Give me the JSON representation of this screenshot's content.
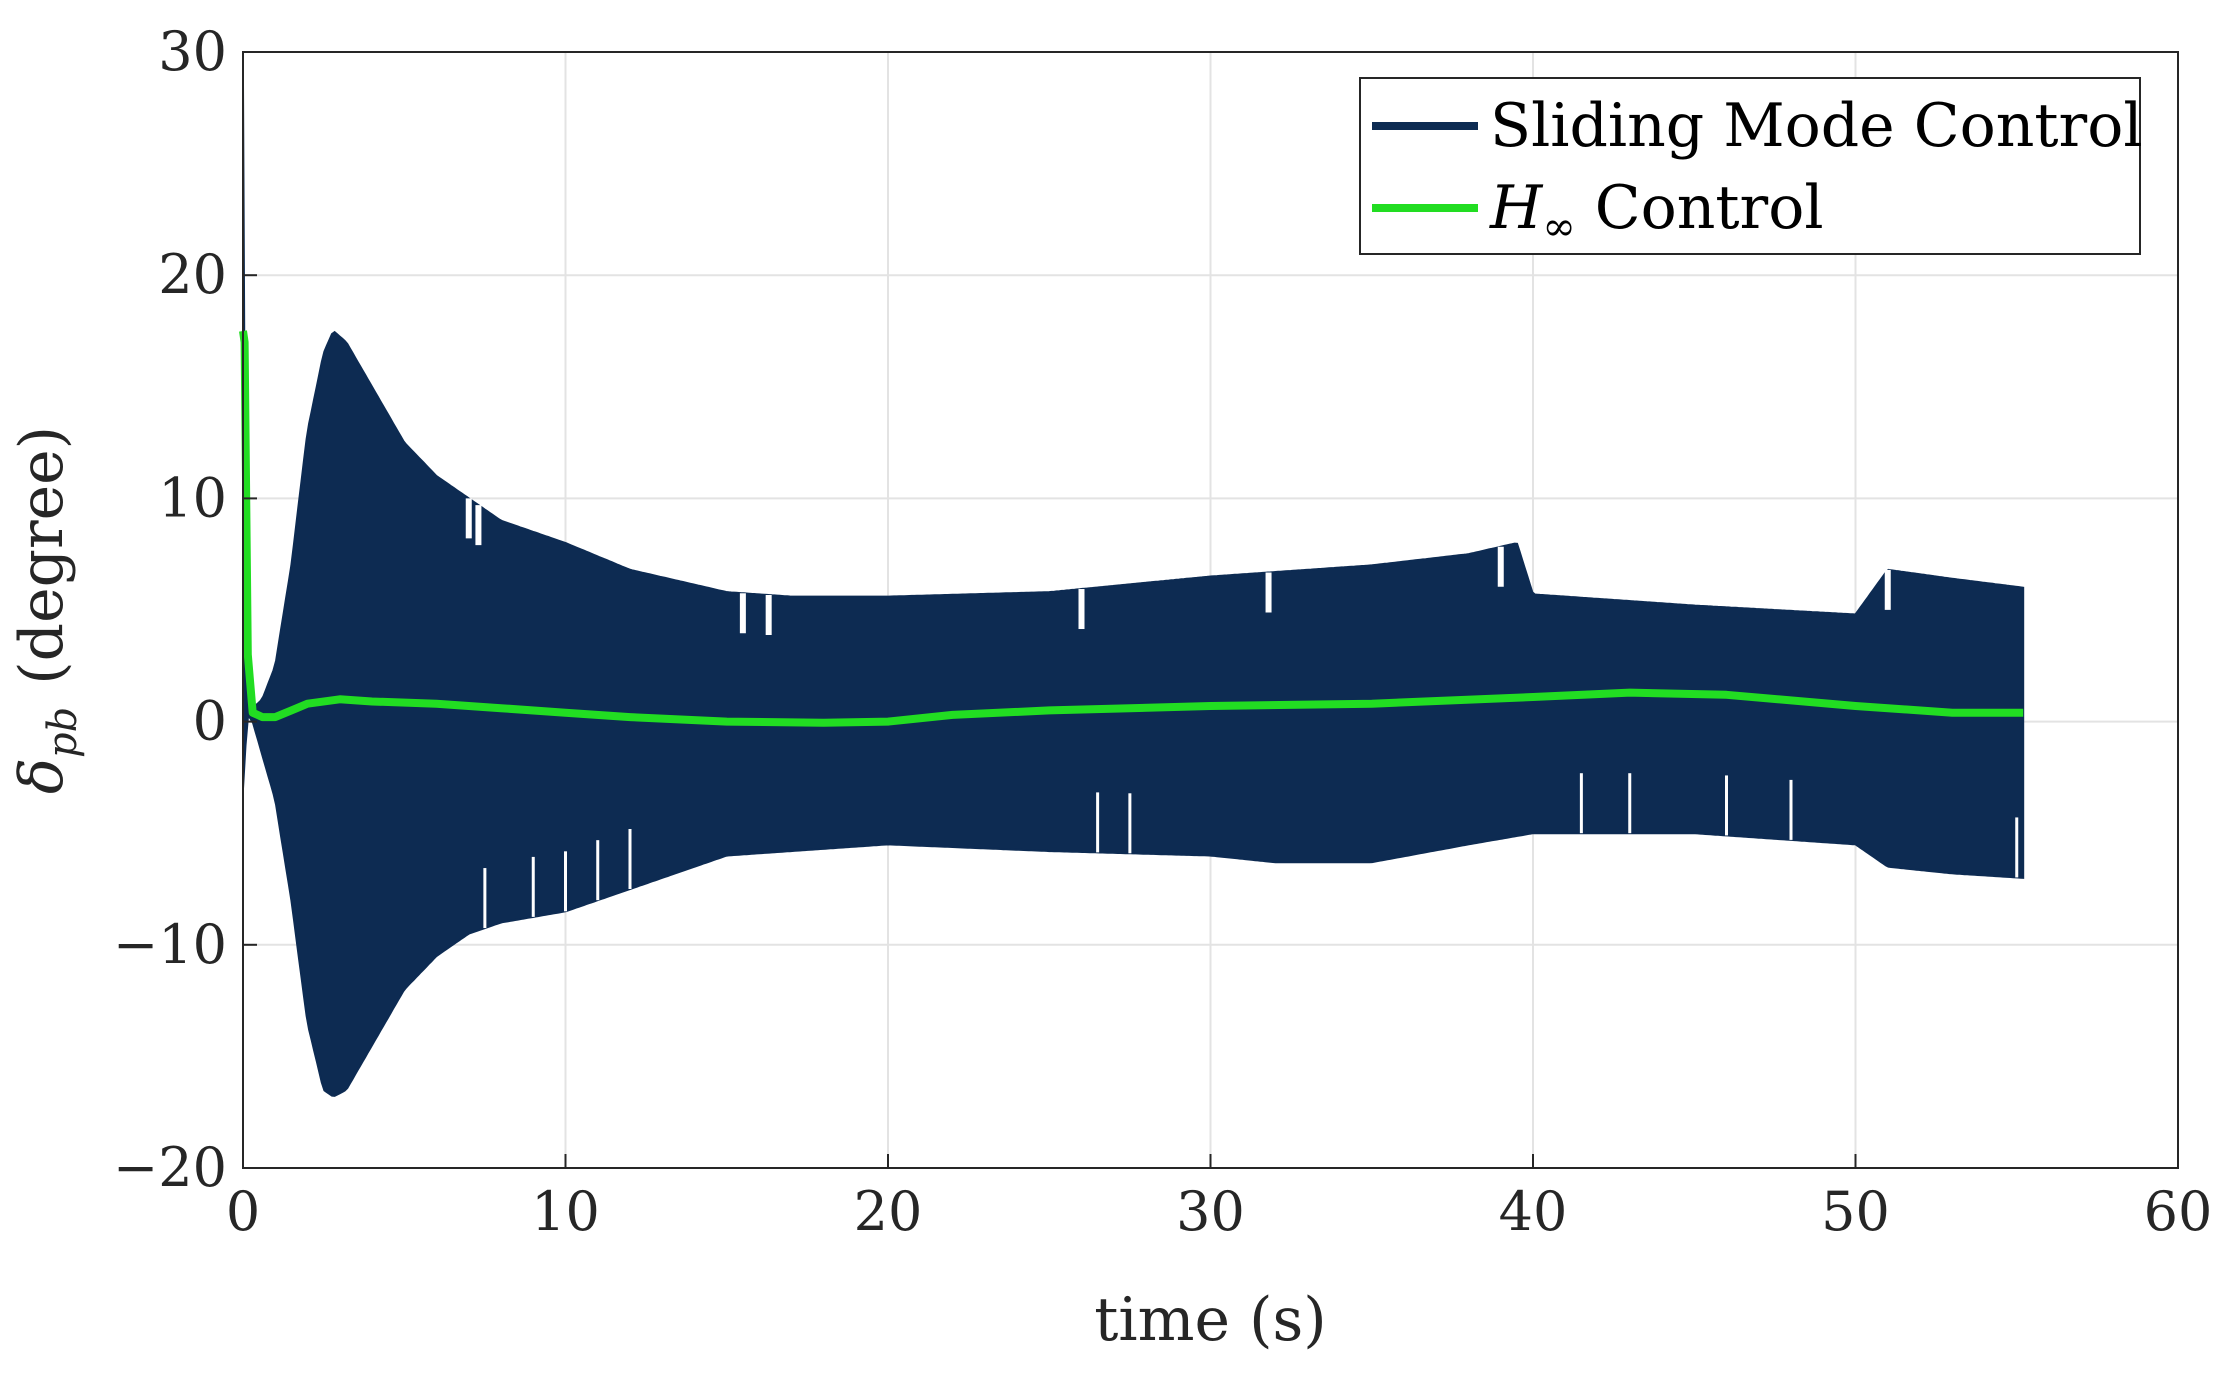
{
  "chart_data": {
    "type": "line",
    "title": "",
    "xlabel": "time (s)",
    "ylabel": "δpb (degree)",
    "ylabel_symbol": "δ",
    "ylabel_subscript": "pb",
    "ylabel_unit": "(degree)",
    "xlim": [
      0,
      60
    ],
    "ylim": [
      -20,
      30
    ],
    "xticks": [
      0,
      10,
      20,
      30,
      40,
      50,
      60
    ],
    "yticks": [
      -20,
      -10,
      0,
      10,
      20,
      30
    ],
    "xtick_labels": [
      "0",
      "10",
      "20",
      "30",
      "40",
      "50",
      "60"
    ],
    "ytick_labels": [
      "−20",
      "−10",
      "0",
      "10",
      "20",
      "30"
    ],
    "grid": true,
    "legend_position": "top-right",
    "series": [
      {
        "name": "Sliding Mode Control",
        "color": "#0d2b52",
        "style": "band",
        "upper_envelope": {
          "t": [
            0,
            0.05,
            0.08,
            0.15,
            0.3,
            0.6,
            1.0,
            1.5,
            2.0,
            2.5,
            2.8,
            3.2,
            4.0,
            5.0,
            6.0,
            7.0,
            8.0,
            10.0,
            12.0,
            15.0,
            17.0,
            20.0,
            25.0,
            30.0,
            32.0,
            35.0,
            38.0,
            39.5,
            40.0,
            45.0,
            50.0,
            51.0,
            53.0,
            55.2
          ],
          "y": [
            28.5,
            28.5,
            5.0,
            0.8,
            0.6,
            1.0,
            2.5,
            7.0,
            13.0,
            16.5,
            17.5,
            17.0,
            15.0,
            12.5,
            11.0,
            10.0,
            9.0,
            8.0,
            6.8,
            5.8,
            5.6,
            5.6,
            5.8,
            6.5,
            6.7,
            7.0,
            7.5,
            8.0,
            5.7,
            5.2,
            4.8,
            6.8,
            6.4,
            6.0
          ]
        },
        "lower_envelope": {
          "t": [
            0,
            0.05,
            0.08,
            0.15,
            0.3,
            0.6,
            1.0,
            1.5,
            2.0,
            2.5,
            2.8,
            3.2,
            4.0,
            5.0,
            6.0,
            7.0,
            8.0,
            10.0,
            12.0,
            15.0,
            17.0,
            20.0,
            25.0,
            30.0,
            32.0,
            35.0,
            38.0,
            40.0,
            45.0,
            50.0,
            51.0,
            53.0,
            55.2
          ],
          "y": [
            -3.0,
            -3.0,
            -1.0,
            0.3,
            0.0,
            -1.5,
            -3.5,
            -8.0,
            -13.5,
            -16.5,
            -16.8,
            -16.5,
            -14.5,
            -12.0,
            -10.5,
            -9.5,
            -9.0,
            -8.5,
            -7.5,
            -6.0,
            -5.8,
            -5.5,
            -5.8,
            -6.0,
            -6.3,
            -6.3,
            -5.5,
            -5.0,
            -5.0,
            -5.5,
            -6.5,
            -6.8,
            -7.0
          ]
        }
      },
      {
        "name": "H∞ Control",
        "legend_symbol": "H",
        "legend_subscript": "∞",
        "legend_suffix": " Control",
        "color": "#22dd22",
        "style": "line",
        "t": [
          0,
          0.05,
          0.15,
          0.3,
          0.6,
          1.0,
          1.5,
          2.0,
          3.0,
          4.0,
          6.0,
          8.0,
          10.0,
          12.0,
          15.0,
          18.0,
          20.0,
          22.0,
          25.0,
          30.0,
          35.0,
          40.0,
          43.0,
          46.0,
          50.0,
          53.0,
          55.2
        ],
        "y": [
          17.5,
          17.0,
          3.0,
          0.4,
          0.2,
          0.2,
          0.5,
          0.8,
          1.0,
          0.9,
          0.8,
          0.6,
          0.4,
          0.2,
          0.0,
          -0.05,
          0.0,
          0.3,
          0.5,
          0.7,
          0.8,
          1.1,
          1.3,
          1.2,
          0.7,
          0.4,
          0.4
        ]
      }
    ]
  }
}
